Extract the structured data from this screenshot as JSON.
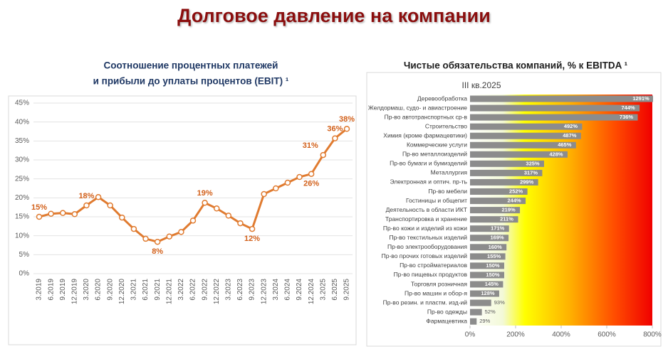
{
  "title": "Долговое давление на компании",
  "chart_data": [
    {
      "type": "line",
      "title": [
        "Соотношение процентных платежей",
        "и прибыли до уплаты процентов (EBIT) ¹"
      ],
      "categories": [
        "3.2019",
        "6.2019",
        "9.2019",
        "12.2019",
        "3.2020",
        "6.2020",
        "9.2020",
        "12.2020",
        "3.2021",
        "6.2021",
        "9.2021",
        "12.2021",
        "3.2022",
        "6.2022",
        "9.2022",
        "12.2022",
        "3.2023",
        "6.2023",
        "9.2023",
        "12.2023",
        "3.2024",
        "6.2024",
        "9.2024",
        "12.2024",
        "3.2025",
        "6.2025",
        "9.2025"
      ],
      "values": [
        15,
        15.8,
        16,
        15.7,
        18,
        20.2,
        18,
        14.8,
        11.8,
        9.2,
        8.4,
        9.8,
        11,
        14,
        18.7,
        17.2,
        15.3,
        13.3,
        11.8,
        21,
        22.5,
        24,
        25.5,
        26.3,
        31.3,
        35.7,
        38.2
      ],
      "value_labels": [
        "15%",
        null,
        null,
        null,
        "18%",
        null,
        null,
        null,
        null,
        null,
        "8%",
        null,
        null,
        null,
        "19%",
        null,
        null,
        null,
        "12%",
        null,
        null,
        null,
        null,
        "26%",
        "31%",
        "36%",
        "38%"
      ],
      "color": "#e07b30",
      "ylim": [
        0,
        45
      ],
      "yticks": [
        {
          "value": 0,
          "label": "0%"
        },
        {
          "value": 5,
          "label": "5%"
        },
        {
          "value": 10,
          "label": "10%"
        },
        {
          "value": 15,
          "label": "15%"
        },
        {
          "value": 20,
          "label": "20%"
        },
        {
          "value": 25,
          "label": "25%"
        },
        {
          "value": 30,
          "label": "30%"
        },
        {
          "value": 35,
          "label": "35%"
        },
        {
          "value": 40,
          "label": "40%"
        },
        {
          "value": 45,
          "label": "45%"
        }
      ],
      "grid": true
    },
    {
      "type": "barh",
      "title": "Чистые обязательства компаний, % к EBITDA ¹",
      "subtitle": "III кв.2025",
      "categories": [
        "Деревообработка",
        "Желдормаш, судо- и авиастроение",
        "Пр-во автотранспортных ср-в",
        "Строительство",
        "Химия (кроме фармацевтики)",
        "Коммерческие услуги",
        "Пр-во металлоизделий",
        "Пр-во бумаги и бумизделий",
        "Металлургия",
        "Электронная и оптич. пр-ть",
        "Пр-во мебели",
        "Гостиницы и общепит",
        "Деятельность в области ИКТ",
        "Транспортировка и хранение",
        "Пр-во кожи и изделий из кожи",
        "Пр-во текстильных изделий",
        "Пр-во электрооборудования",
        "Пр-во прочих готовых изделий",
        "Пр-во стройматериалов",
        "Пр-во пищевых продуктов",
        "Торговля розничная",
        "Пр-во машин и обор-я",
        "Пр-во резин. и пластм. изд-ий",
        "Пр-во одежды",
        "Фармацевтика"
      ],
      "values": [
        1291,
        744,
        736,
        492,
        487,
        465,
        428,
        325,
        317,
        299,
        252,
        244,
        219,
        211,
        171,
        169,
        160,
        155,
        150,
        150,
        145,
        128,
        93,
        52,
        29
      ],
      "value_labels": [
        "1291%",
        "744%",
        "736%",
        "492%",
        "487%",
        "465%",
        "428%",
        "325%",
        "317%",
        "299%",
        "252%",
        "244%",
        "219%",
        "211%",
        "171%",
        "169%",
        "160%",
        "155%",
        "150%",
        "150%",
        "145%",
        "128%",
        "93%",
        "52%",
        "29%"
      ],
      "color": "#8c8c8c",
      "xlim": [
        0,
        800
      ],
      "xticks": [
        {
          "value": 0,
          "label": "0%"
        },
        {
          "value": 200,
          "label": "200%"
        },
        {
          "value": 400,
          "label": "400%"
        },
        {
          "value": 600,
          "label": "600%"
        },
        {
          "value": 800,
          "label": "800%"
        }
      ]
    }
  ]
}
